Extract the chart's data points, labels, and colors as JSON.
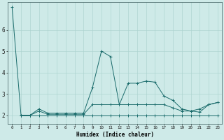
{
  "title": "",
  "xlabel": "Humidex (Indice chaleur)",
  "ylabel": "",
  "background_color": "#ceeae8",
  "line_color": "#1a6b6b",
  "xlim": [
    -0.5,
    23.5
  ],
  "ylim": [
    1.6,
    7.3
  ],
  "yticks": [
    2,
    3,
    4,
    5,
    6
  ],
  "xtick_labels": [
    "0",
    "1",
    "2",
    "3",
    "4",
    "5",
    "6",
    "7",
    "8",
    "9",
    "10",
    "11",
    "12",
    "13",
    "14",
    "15",
    "16",
    "17",
    "18",
    "19",
    "20",
    "21",
    "22",
    "23"
  ],
  "series": [
    {
      "x": [
        0,
        1,
        2,
        3,
        4,
        5,
        6,
        7,
        8,
        9,
        10,
        11,
        12,
        13,
        14,
        15,
        16,
        17,
        18,
        19,
        20,
        21,
        22,
        23
      ],
      "y": [
        7.05,
        2.0,
        2.0,
        2.3,
        2.1,
        2.1,
        2.1,
        2.1,
        2.1,
        3.3,
        5.0,
        4.75,
        2.5,
        3.5,
        3.5,
        3.6,
        3.55,
        2.9,
        2.7,
        2.3,
        2.2,
        2.15,
        2.5,
        2.6
      ]
    },
    {
      "x": [
        1,
        2,
        3,
        4,
        5,
        6,
        7,
        8,
        9,
        10,
        11,
        12,
        13,
        14,
        15,
        16,
        17,
        18,
        19,
        20,
        21,
        22,
        23
      ],
      "y": [
        2.0,
        2.0,
        2.2,
        2.05,
        2.05,
        2.05,
        2.05,
        2.05,
        2.5,
        2.5,
        2.5,
        2.5,
        2.5,
        2.5,
        2.5,
        2.5,
        2.5,
        2.35,
        2.2,
        2.2,
        2.3,
        2.5,
        2.6
      ]
    },
    {
      "x": [
        1,
        2,
        3,
        4,
        5,
        6,
        7,
        8,
        9,
        10,
        11,
        12,
        13,
        14,
        15,
        16,
        17,
        18,
        19,
        20,
        21,
        22,
        23
      ],
      "y": [
        2.0,
        2.0,
        2.0,
        2.0,
        2.0,
        2.0,
        2.0,
        2.0,
        2.0,
        2.0,
        2.0,
        2.0,
        2.0,
        2.0,
        2.0,
        2.0,
        2.0,
        2.0,
        2.0,
        2.0,
        2.0,
        2.0,
        2.0
      ]
    }
  ]
}
